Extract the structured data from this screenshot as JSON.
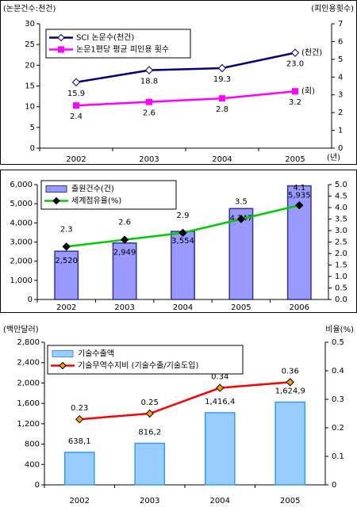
{
  "chart_data": [
    {
      "type": "line",
      "y_label": "(논문건수:천건)",
      "y2_label": "(피인용횟수)",
      "x_label": "(년)",
      "categories": [
        "2002",
        "2003",
        "2004",
        "2005"
      ],
      "ylim": [
        0,
        30
      ],
      "yticks": [
        0,
        5,
        10,
        15,
        20,
        25,
        30
      ],
      "y2lim": [
        0,
        7
      ],
      "y2ticks": [
        0,
        1,
        2,
        3,
        4,
        5,
        6,
        7
      ],
      "series": [
        {
          "name": "SCI 논문수(천건)",
          "type": "line",
          "color": "#000080",
          "marker": "diamond",
          "marker_color": "#ffffff",
          "values": [
            15.9,
            18.8,
            19.3,
            23.0
          ],
          "value_labels": [
            "15.9",
            "18.8",
            "19.3",
            "23.0"
          ]
        },
        {
          "name": "논문1편당 평균 피인용 횟수",
          "type": "line",
          "axis": "y2",
          "color": "#ff00ff",
          "marker": "square",
          "marker_color": "#ff00ff",
          "values": [
            2.4,
            2.6,
            2.8,
            3.2
          ]
        }
      ],
      "annotations": [
        "(천건)",
        "(회)"
      ]
    },
    {
      "type": "bar",
      "categories": [
        "2002",
        "2003",
        "2004",
        "2005",
        "2006"
      ],
      "ylim": [
        0,
        6000
      ],
      "yticks": [
        0,
        {
          "value": 1000,
          "label": "1,000"
        },
        {
          "value": 2000,
          "label": "2,000"
        },
        {
          "value": 3000,
          "label": "3,000"
        },
        {
          "value": 4000,
          "label": "4,000"
        },
        {
          "value": 5000,
          "label": "5,000"
        },
        {
          "value": 6000,
          "label": "6,000"
        }
      ],
      "y2lim": [
        0,
        5
      ],
      "y2ticks": [
        {
          "value": 0,
          "label": "0.0"
        },
        0.5,
        {
          "value": 1,
          "label": "1.0"
        },
        1.5,
        {
          "value": 2,
          "label": "2.0"
        },
        2.5,
        {
          "value": 3,
          "label": "3.0"
        },
        3.5,
        {
          "value": 4,
          "label": "4.0"
        },
        4.5,
        {
          "value": 5,
          "label": "5.0"
        }
      ],
      "series": [
        {
          "name": "출원건수(건)",
          "type": "bar",
          "color": "#9999ff",
          "border": "#333399",
          "values": [
            2520,
            2949,
            3554,
            4747,
            5935
          ],
          "value_labels": [
            "2,520",
            "2,949",
            "3,554",
            "4,747",
            "5,935"
          ]
        },
        {
          "name": "세계점유율(%)",
          "type": "line",
          "axis": "y2",
          "color": "#00cc00",
          "marker": "diamond",
          "marker_color": "#000000",
          "values": [
            2.3,
            2.6,
            2.9,
            3.5,
            4.1
          ]
        }
      ]
    },
    {
      "type": "bar",
      "y_label": "(백만달러)",
      "y2_label": "비율(%)",
      "categories": [
        "2002",
        "2003",
        "2004",
        "2005"
      ],
      "ylim": [
        0,
        2800
      ],
      "yticks": [
        0,
        400,
        800,
        {
          "value": 1200,
          "label": "1,200"
        },
        {
          "value": 1600,
          "label": "1,600"
        },
        {
          "value": 2000,
          "label": "2,000"
        },
        {
          "value": 2400,
          "label": "2,400"
        },
        {
          "value": 2800,
          "label": "2,800"
        }
      ],
      "y2lim": [
        0,
        0.5
      ],
      "y2ticks": [
        0,
        0.1,
        0.2,
        0.3,
        0.4,
        0.5
      ],
      "series": [
        {
          "name": "기술수출액",
          "type": "bar",
          "color": "#99ccff",
          "border": "#3399ff",
          "values": [
            638.1,
            816.2,
            1416.4,
            1624.9
          ],
          "value_labels": [
            "638,1",
            "816,2",
            "1,416,4",
            "1,624,9"
          ]
        },
        {
          "name": "기술무역수지비 (기술수출/기술도입)",
          "type": "line",
          "axis": "y2",
          "color": "#ff0000",
          "marker": "diamond",
          "marker_color": "#ff9900",
          "values": [
            0.23,
            0.25,
            0.34,
            0.36
          ],
          "value_labels": [
            "0.23",
            "0.25",
            "0.34",
            "0.36"
          ]
        }
      ]
    }
  ]
}
